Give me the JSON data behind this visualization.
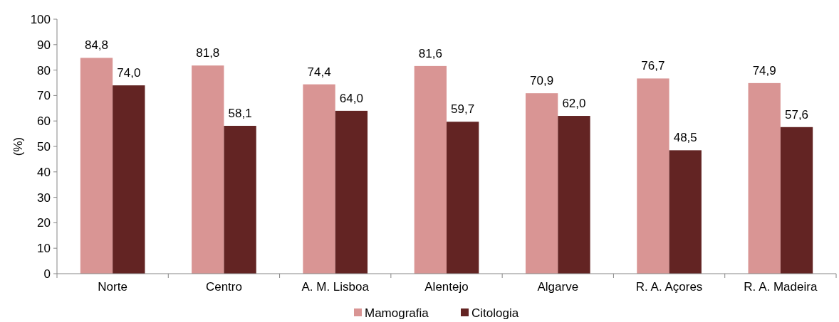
{
  "chart_data": {
    "type": "bar",
    "ylabel": "(%)",
    "categories": [
      "Norte",
      "Centro",
      "A. M. Lisboa",
      "Alentejo",
      "Algarve",
      "R. A. Açores",
      "R. A. Madeira"
    ],
    "series": [
      {
        "name": "Mamografia",
        "color": "#d99594",
        "values": [
          84.8,
          81.8,
          74.4,
          81.6,
          70.9,
          76.7,
          74.9
        ],
        "value_labels": [
          "84,8",
          "81,8",
          "74,4",
          "81,6",
          "70,9",
          "76,7",
          "74,9"
        ]
      },
      {
        "name": "Citologia",
        "color": "#632423",
        "values": [
          74.0,
          58.1,
          64.0,
          59.7,
          62.0,
          48.5,
          57.6
        ],
        "value_labels": [
          "74,0",
          "58,1",
          "64,0",
          "59,7",
          "62,0",
          "48,5",
          "57,6"
        ]
      }
    ],
    "ylim": [
      0,
      100
    ],
    "yticks": [
      0,
      10,
      20,
      30,
      40,
      50,
      60,
      70,
      80,
      90,
      100
    ],
    "legend": "bottom"
  }
}
